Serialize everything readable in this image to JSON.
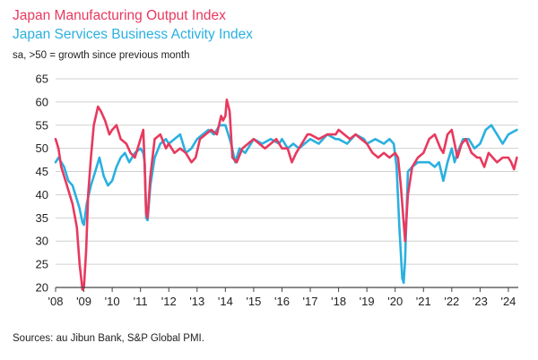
{
  "chart_data": {
    "type": "line",
    "title": "Japan Manufacturing Output Index",
    "subtitle": "Japan Services Business Activity Index",
    "note": "sa, >50 = growth since previous month",
    "source": "Sources: au Jibun Bank, S&P Global PMI.",
    "ylim": [
      20,
      65
    ],
    "yticks": [
      20,
      25,
      30,
      35,
      40,
      45,
      50,
      55,
      60,
      65
    ],
    "xlim": [
      2008.0,
      2024.35
    ],
    "xticks": [
      {
        "value": 2008,
        "label": "'08"
      },
      {
        "value": 2009,
        "label": "'09"
      },
      {
        "value": 2010,
        "label": "'10"
      },
      {
        "value": 2011,
        "label": "'11"
      },
      {
        "value": 2012,
        "label": "'12"
      },
      {
        "value": 2013,
        "label": "'13"
      },
      {
        "value": 2014,
        "label": "'14"
      },
      {
        "value": 2015,
        "label": "'15"
      },
      {
        "value": 2016,
        "label": "'16"
      },
      {
        "value": 2017,
        "label": "'17"
      },
      {
        "value": 2018,
        "label": "'18"
      },
      {
        "value": 2019,
        "label": "'19"
      },
      {
        "value": 2020,
        "label": "'20"
      },
      {
        "value": 2021,
        "label": "'21"
      },
      {
        "value": 2022,
        "label": "'22"
      },
      {
        "value": 2023,
        "label": "'23"
      },
      {
        "value": 2024,
        "label": "'24"
      }
    ],
    "grid": "horizontal",
    "colors": {
      "manufacturing": "#e8395e",
      "services": "#2ab0e0",
      "grid": "#d0d0d0",
      "axis": "#444444"
    },
    "series": [
      {
        "name": "Japan Manufacturing Output Index",
        "color": "#e8395e",
        "x": [
          2008.0,
          2008.1,
          2008.2,
          2008.3,
          2008.45,
          2008.6,
          2008.75,
          2008.85,
          2008.95,
          2009.0,
          2009.08,
          2009.15,
          2009.25,
          2009.35,
          2009.5,
          2009.6,
          2009.75,
          2009.9,
          2010.0,
          2010.15,
          2010.3,
          2010.5,
          2010.65,
          2010.8,
          2011.0,
          2011.1,
          2011.15,
          2011.2,
          2011.25,
          2011.35,
          2011.5,
          2011.7,
          2011.9,
          2012.0,
          2012.2,
          2012.4,
          2012.6,
          2012.8,
          2012.95,
          2013.1,
          2013.3,
          2013.5,
          2013.7,
          2013.85,
          2013.92,
          2014.0,
          2014.05,
          2014.15,
          2014.25,
          2014.4,
          2014.6,
          2014.8,
          2015.0,
          2015.2,
          2015.4,
          2015.6,
          2015.8,
          2016.0,
          2016.2,
          2016.35,
          2016.5,
          2016.7,
          2016.9,
          2017.0,
          2017.3,
          2017.6,
          2017.9,
          2018.0,
          2018.2,
          2018.4,
          2018.6,
          2018.8,
          2019.0,
          2019.2,
          2019.4,
          2019.6,
          2019.8,
          2020.0,
          2020.1,
          2020.2,
          2020.3,
          2020.35,
          2020.45,
          2020.6,
          2020.8,
          2021.0,
          2021.2,
          2021.4,
          2021.6,
          2021.7,
          2021.85,
          2022.0,
          2022.1,
          2022.2,
          2022.35,
          2022.5,
          2022.7,
          2022.9,
          2023.0,
          2023.15,
          2023.3,
          2023.45,
          2023.6,
          2023.8,
          2024.0,
          2024.1,
          2024.2,
          2024.3
        ],
        "values": [
          52,
          50,
          46,
          44,
          41,
          38,
          33,
          25,
          19.5,
          20,
          28,
          40,
          48,
          55,
          59,
          58,
          56,
          53,
          54,
          55,
          52,
          51,
          49,
          48,
          52,
          54,
          46,
          36,
          35,
          44,
          52,
          53,
          50,
          51,
          49,
          50,
          49,
          47,
          48,
          52,
          53,
          54,
          53,
          57,
          56,
          57,
          60.5,
          58,
          48,
          47,
          50,
          51,
          52,
          51,
          50,
          51,
          52,
          50,
          50,
          47,
          49,
          51,
          53,
          53,
          52,
          53,
          53,
          54,
          53,
          52,
          53,
          52,
          51,
          49,
          48,
          49,
          48,
          49,
          48,
          42,
          34,
          30,
          40,
          46,
          48,
          49,
          52,
          53,
          50,
          49,
          53,
          54,
          51,
          48,
          51,
          52,
          49,
          48,
          48,
          46,
          49,
          48,
          47,
          48,
          48,
          47,
          45.5,
          48
        ]
      },
      {
        "name": "Japan Services Business Activity Index",
        "color": "#2ab0e0",
        "x": [
          2008.0,
          2008.1,
          2008.2,
          2008.3,
          2008.45,
          2008.6,
          2008.75,
          2008.85,
          2008.95,
          2009.0,
          2009.1,
          2009.25,
          2009.4,
          2009.55,
          2009.7,
          2009.85,
          2010.0,
          2010.15,
          2010.3,
          2010.45,
          2010.6,
          2010.8,
          2011.0,
          2011.1,
          2011.15,
          2011.2,
          2011.25,
          2011.35,
          2011.5,
          2011.7,
          2011.9,
          2012.0,
          2012.2,
          2012.4,
          2012.6,
          2012.8,
          2013.0,
          2013.2,
          2013.4,
          2013.6,
          2013.8,
          2014.0,
          2014.2,
          2014.35,
          2014.5,
          2014.7,
          2014.9,
          2015.0,
          2015.3,
          2015.6,
          2015.9,
          2016.0,
          2016.2,
          2016.4,
          2016.6,
          2016.8,
          2017.0,
          2017.3,
          2017.6,
          2017.9,
          2018.0,
          2018.3,
          2018.6,
          2018.9,
          2019.0,
          2019.3,
          2019.6,
          2019.8,
          2019.95,
          2020.05,
          2020.15,
          2020.25,
          2020.3,
          2020.35,
          2020.45,
          2020.6,
          2020.8,
          2021.0,
          2021.2,
          2021.4,
          2021.55,
          2021.7,
          2021.85,
          2022.0,
          2022.1,
          2022.2,
          2022.4,
          2022.6,
          2022.8,
          2023.0,
          2023.2,
          2023.4,
          2023.6,
          2023.8,
          2024.0,
          2024.15,
          2024.3
        ],
        "values": [
          47,
          48,
          47,
          46,
          43,
          42,
          39,
          37,
          34,
          33.5,
          38,
          42,
          45,
          48,
          44,
          42,
          43,
          46,
          48,
          49,
          47,
          49,
          50,
          49,
          47,
          35,
          34.5,
          42,
          48,
          51,
          52,
          51,
          52,
          53,
          49,
          50,
          52,
          53,
          54,
          53,
          55,
          55,
          51,
          47,
          50,
          49,
          51,
          52,
          51,
          52,
          51,
          52,
          50,
          51,
          50,
          51,
          52,
          51,
          53,
          52,
          52,
          51,
          53,
          52,
          51,
          52,
          51,
          52,
          51,
          46,
          33,
          22,
          21,
          26,
          45,
          46,
          47,
          47,
          47,
          46,
          47,
          43,
          47,
          50,
          47,
          49,
          52,
          52,
          50,
          51,
          54,
          55,
          53,
          51,
          53,
          53.5,
          54
        ]
      }
    ]
  }
}
